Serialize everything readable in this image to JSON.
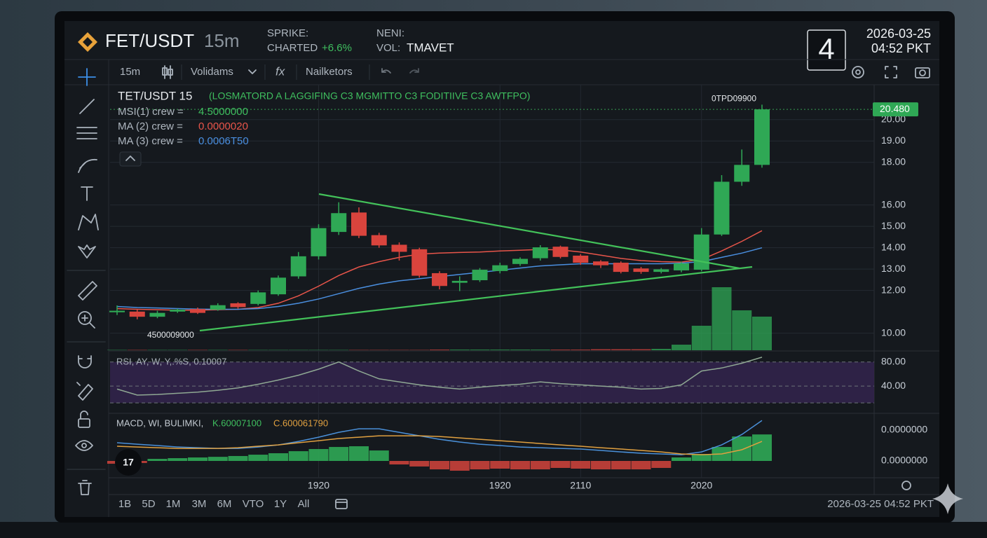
{
  "header": {
    "symbol": "FET/USDT",
    "interval": "15m",
    "stat1_label": "SPRIKE:",
    "stat1_sub": "CHARTED",
    "stat1_change": "+6.6%",
    "stat2_label": "NENI:",
    "stat2_sub": "VOL:",
    "stat2_value": "TMAVET",
    "badge": "4",
    "date": "2026-03-25",
    "time": "04:52 PKT"
  },
  "toolbar": {
    "interval": "15m",
    "volume": "Volidams",
    "function": "fx",
    "indicators": "Nailketors"
  },
  "chart_data": [
    {
      "type": "candlestick",
      "title": "TET/USDT 15",
      "subtitle": "(LOSMATORD A LAGGIFING C3 MGMITTO C3 FODITIIVE C3 AWTFPO)",
      "readouts": [
        {
          "name": "MSI(1) crew =",
          "value": "4.5000000",
          "color": "#3fbf5f"
        },
        {
          "name": "MA (2) crew =",
          "value": "0.0000020",
          "color": "#e8554a"
        },
        {
          "name": "MA (3) crew =",
          "value": "0.0006T50",
          "color": "#4a8fe0"
        }
      ],
      "categories": [
        null,
        null,
        null,
        null,
        null,
        null,
        null,
        null,
        null,
        null,
        "1920",
        null,
        null,
        null,
        null,
        null,
        null,
        null,
        null,
        "1920",
        null,
        null,
        null,
        "2110",
        null,
        null,
        null,
        null,
        null,
        "2020",
        null,
        null,
        null
      ],
      "open": [
        10.98,
        11.01,
        10.77,
        11.01,
        11.13,
        11.1,
        11.4,
        11.37,
        11.82,
        12.66,
        13.6,
        14.74,
        15.65,
        14.59,
        14.14,
        13.93,
        12.81,
        12.36,
        12.48,
        12.91,
        13.24,
        13.51,
        14.05,
        13.63,
        13.36,
        13.3,
        13.03,
        12.87,
        12.94,
        12.97,
        14.62,
        17.09,
        17.88
      ],
      "high": [
        11.3,
        11.1,
        11.05,
        11.15,
        11.2,
        11.4,
        11.45,
        12.0,
        12.7,
        13.8,
        15.1,
        16.13,
        15.89,
        14.7,
        14.25,
        14.0,
        12.9,
        12.66,
        13.05,
        13.3,
        13.55,
        14.12,
        14.1,
        13.7,
        13.42,
        13.36,
        13.1,
        13.05,
        13.35,
        14.92,
        17.4,
        18.6,
        20.7
      ],
      "low": [
        10.85,
        10.65,
        10.7,
        10.95,
        10.9,
        11.05,
        11.15,
        11.3,
        11.75,
        12.55,
        13.45,
        14.6,
        14.45,
        14.0,
        13.4,
        12.6,
        12.05,
        11.97,
        12.4,
        12.8,
        13.15,
        13.4,
        13.5,
        13.2,
        13.05,
        12.8,
        12.78,
        12.8,
        12.85,
        12.9,
        14.55,
        16.9,
        17.75
      ],
      "close": [
        11.05,
        10.77,
        10.95,
        11.1,
        10.95,
        11.31,
        11.22,
        11.91,
        12.6,
        13.6,
        14.92,
        15.62,
        14.56,
        14.11,
        13.81,
        12.69,
        12.21,
        12.45,
        12.97,
        13.18,
        13.48,
        14.02,
        13.57,
        13.3,
        13.18,
        12.87,
        12.87,
        12.99,
        13.27,
        14.62,
        17.09,
        17.88,
        20.48
      ],
      "up_color": "#2fa855",
      "down_color": "#d9443d",
      "series": [
        {
          "color": "#e8554a",
          "values": [
            11.15,
            11.12,
            11.1,
            11.08,
            11.08,
            11.1,
            11.12,
            11.2,
            11.4,
            11.75,
            12.2,
            12.7,
            13.1,
            13.35,
            13.55,
            13.7,
            13.75,
            13.78,
            13.8,
            13.85,
            13.88,
            13.92,
            13.9,
            13.8,
            13.65,
            13.5,
            13.4,
            13.35,
            13.33,
            13.45,
            13.85,
            14.3,
            14.8
          ]
        },
        {
          "color": "#4a8fe0",
          "values": [
            11.25,
            11.2,
            11.18,
            11.15,
            11.13,
            11.12,
            11.12,
            11.15,
            11.25,
            11.4,
            11.6,
            11.85,
            12.1,
            12.3,
            12.45,
            12.55,
            12.65,
            12.75,
            12.85,
            12.95,
            13.05,
            13.15,
            13.2,
            13.25,
            13.25,
            13.25,
            13.25,
            13.25,
            13.28,
            13.35,
            13.55,
            13.75,
            14.0
          ]
        }
      ],
      "volume": [
        0.5,
        0.5,
        0.5,
        0.5,
        0.5,
        0.5,
        0.5,
        0.5,
        0.5,
        0.5,
        0.5,
        0.5,
        0.5,
        0.5,
        0.5,
        0.5,
        1,
        1,
        1,
        1,
        1,
        1,
        1,
        1,
        1.5,
        1.5,
        1.5,
        2,
        8,
        35,
        90,
        57,
        48
      ],
      "ylim": [
        9.2,
        21.5
      ],
      "yticks": [
        {
          "value": 20,
          "label": "20.00"
        },
        {
          "value": 19,
          "label": "19.00"
        },
        {
          "value": 18,
          "label": "18.00"
        },
        {
          "value": 16,
          "label": "16.00"
        },
        {
          "value": 15,
          "label": "15.00"
        },
        {
          "value": 14,
          "label": "14.00"
        },
        {
          "value": 13,
          "label": "13.00"
        },
        {
          "value": 12,
          "label": "12.00"
        },
        {
          "value": 10,
          "label": "10.00"
        }
      ],
      "grid": true,
      "last_price": {
        "value": 20.48,
        "label": "20.480"
      },
      "annotations": [
        "0TPD09900",
        "4500009000"
      ]
    },
    {
      "type": "line",
      "title": "RSI, AY, W, Y,.%S, 0.10007",
      "series": [
        {
          "color": "#8fa893",
          "values": [
            35,
            25,
            26,
            28,
            30,
            33,
            37,
            43,
            50,
            58,
            68,
            80,
            65,
            52,
            47,
            42,
            38,
            35,
            38,
            41,
            43,
            47,
            44,
            42,
            40,
            38,
            35,
            36,
            42,
            65,
            70,
            78,
            88
          ]
        }
      ],
      "ylim": [
        -3,
        96
      ],
      "yticks": [
        {
          "value": 80,
          "label": "80.00"
        },
        {
          "value": 40,
          "label": "40.00"
        }
      ],
      "band": [
        12,
        80
      ],
      "band_color": "#33244d"
    },
    {
      "type": "macd",
      "title": "MACD, WI, BULIMKI,",
      "k_label": "K.60007100",
      "c_label": "C.600061790",
      "histogram": [
        -2.7e-09,
        -2e-09,
        2e-09,
        2.7e-09,
        3.4e-09,
        4e-09,
        4.8e-09,
        6.1e-09,
        7.5e-09,
        9.5e-09,
        1.16e-08,
        1.36e-08,
        1.43e-08,
        1.02e-08,
        -3.4e-09,
        -5.4e-09,
        -8.2e-09,
        -9.5e-09,
        -8.2e-09,
        -7.5e-09,
        -8.2e-09,
        -8.2e-09,
        -6.8e-09,
        -7.5e-09,
        -8.2e-09,
        -8.2e-09,
        -8.2e-09,
        -6.8e-09,
        3.4e-09,
        6.8e-09,
        1.36e-08,
        2.38e-08,
        2.58e-08
      ],
      "up_color": "#2fa855",
      "down_color": "#c9413a",
      "series": [
        {
          "color": "#4a90d9",
          "values": [
            1.77e-08,
            1.63e-08,
            1.5e-08,
            1.36e-08,
            1.29e-08,
            1.22e-08,
            1.22e-08,
            1.36e-08,
            1.56e-08,
            1.9e-08,
            2.31e-08,
            2.79e-08,
            3.13e-08,
            3.13e-08,
            2.79e-08,
            2.45e-08,
            2.11e-08,
            1.84e-08,
            1.63e-08,
            1.5e-08,
            1.36e-08,
            1.29e-08,
            1.22e-08,
            1.16e-08,
            1.02e-08,
            8.8e-09,
            7.5e-09,
            6.8e-09,
            6.1e-09,
            8.8e-09,
            1.56e-08,
            2.58e-08,
            3.94e-08
          ]
        },
        {
          "color": "#e0a040",
          "values": [
            1.43e-08,
            1.36e-08,
            1.29e-08,
            1.22e-08,
            1.22e-08,
            1.22e-08,
            1.29e-08,
            1.43e-08,
            1.56e-08,
            1.77e-08,
            1.97e-08,
            2.18e-08,
            2.31e-08,
            2.45e-08,
            2.45e-08,
            2.45e-08,
            2.38e-08,
            2.24e-08,
            2.11e-08,
            1.97e-08,
            1.84e-08,
            1.7e-08,
            1.56e-08,
            1.43e-08,
            1.29e-08,
            1.16e-08,
            1.02e-08,
            8.8e-09,
            6.8e-09,
            6.1e-09,
            6.8e-09,
            1.09e-08,
            1.9e-08
          ]
        }
      ],
      "ylim": [
        -1.5e-08,
        4.5e-08
      ],
      "yticks": [
        {
          "value": 3e-08,
          "label": "0.0000000"
        },
        {
          "value": 0,
          "label": "0.0000000"
        }
      ]
    }
  ],
  "footer": {
    "ranges": [
      "1B",
      "5D",
      "1M",
      "3M",
      "6M",
      "VTO",
      "1Y",
      "All"
    ],
    "timestamp": "2026-03-25  04:52 PKT"
  }
}
